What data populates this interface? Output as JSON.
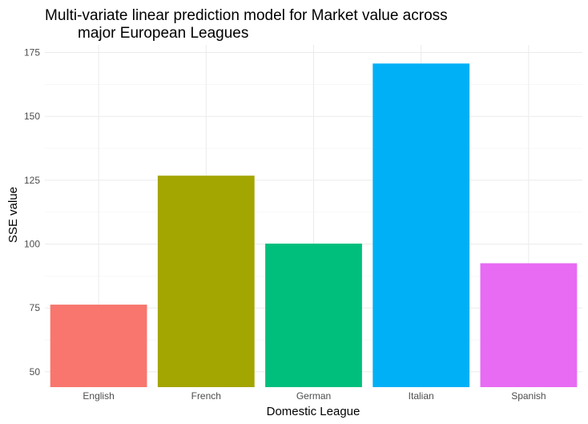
{
  "chart_data": {
    "type": "bar",
    "title_lines": [
      "Multi-variate linear prediction model for Market value across",
      "major European Leagues"
    ],
    "xlabel": "Domestic League",
    "ylabel": "SSE value",
    "categories": [
      "English",
      "French",
      "German",
      "Italian",
      "Spanish"
    ],
    "values": [
      76.3,
      126.8,
      100.2,
      170.7,
      92.5
    ],
    "colors": [
      "#F8766D",
      "#A3A500",
      "#00BF7D",
      "#00B0F6",
      "#E76BF3"
    ],
    "y_ticks": [
      50,
      75,
      100,
      125,
      150,
      175
    ],
    "ylim": [
      44,
      178
    ],
    "grid": true,
    "legend": "none"
  }
}
